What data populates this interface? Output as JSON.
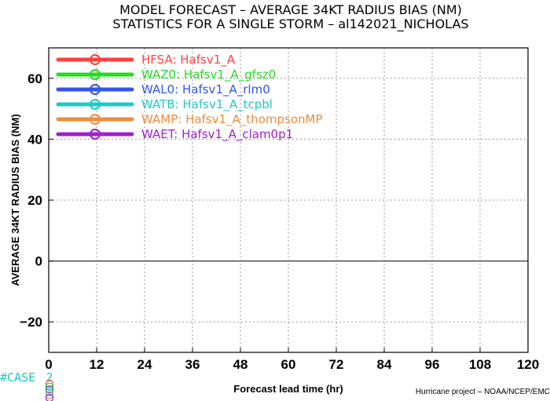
{
  "chart_data": {
    "type": "line",
    "title": "MODEL FORECAST – AVERAGE 34KT RADIUS BIAS (NM)",
    "subtitle": "STATISTICS FOR A SINGLE STORM – al142021_NICHOLAS",
    "xlabel": "Forecast lead time (hr)",
    "ylabel": "AVERAGE 34KT RADIUS BIAS (NM)",
    "xlim": [
      0,
      120
    ],
    "ylim": [
      -30,
      70
    ],
    "x_ticks": [
      0,
      12,
      24,
      36,
      48,
      60,
      72,
      84,
      96,
      108,
      120
    ],
    "y_ticks": [
      -20,
      0,
      20,
      40,
      60
    ],
    "x_tick_labels": [
      "0",
      "12",
      "24",
      "36",
      "48",
      "60",
      "72",
      "84",
      "96",
      "108",
      "120"
    ],
    "y_tick_labels": [
      "−20",
      "0",
      "20",
      "40",
      "60"
    ],
    "grid": true,
    "reference_line": 0,
    "legend_position": "top-left",
    "series": [
      {
        "name": "HFSA: Hafsv1_A",
        "color": "#ff4040",
        "values": []
      },
      {
        "name": "WAZ0: Hafsv1_A_gfsz0",
        "color": "#22dd22",
        "values": []
      },
      {
        "name": "WAL0: Hafsv1_A_rlm0",
        "color": "#3355ee",
        "values": []
      },
      {
        "name": "WATB: Hafsv1_A_tcpbl",
        "color": "#22c8c8",
        "values": []
      },
      {
        "name": "WAMP: Hafsv1_A_thompsonMP",
        "color": "#f08c3c",
        "values": []
      },
      {
        "name": "WAET: Hafsv1_A_clam0p1",
        "color": "#a020d0",
        "values": []
      }
    ],
    "case_label": "#CASE",
    "case_counts": [
      "2"
    ],
    "credit": "Hurricane project – NOAA/NCEP/EMC"
  }
}
